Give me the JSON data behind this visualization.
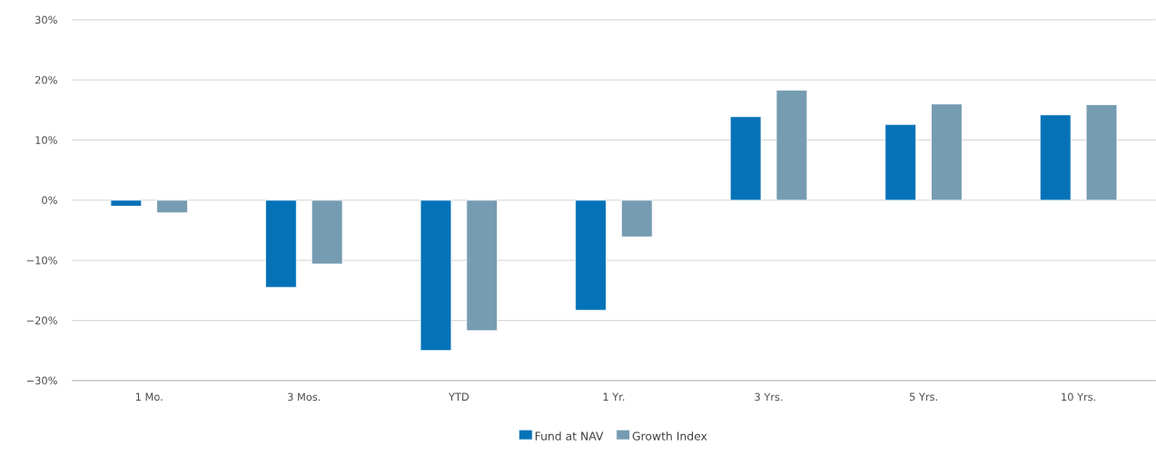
{
  "chart_data": {
    "type": "bar",
    "categories": [
      "1 Mo.",
      "3 Mos.",
      "YTD",
      "1 Yr.",
      "3 Yrs.",
      "5 Yrs.",
      "10 Yrs."
    ],
    "series": [
      {
        "name": "Fund at NAV",
        "color": "#0572b8",
        "values": [
          -1.0,
          -14.5,
          -25.0,
          -18.3,
          13.9,
          12.6,
          14.2
        ]
      },
      {
        "name": "Growth Index",
        "color": "#769cb2",
        "values": [
          -2.1,
          -10.6,
          -21.7,
          -6.1,
          18.3,
          16.0,
          15.9
        ]
      }
    ],
    "ylim": [
      -30,
      30
    ],
    "yticks": [
      {
        "value": -30,
        "label": "−30%"
      },
      {
        "value": -20,
        "label": "−20%"
      },
      {
        "value": -10,
        "label": "−10%"
      },
      {
        "value": 0,
        "label": "0%"
      },
      {
        "value": 10,
        "label": "10%"
      },
      {
        "value": 20,
        "label": "20%"
      },
      {
        "value": 30,
        "label": "30%"
      }
    ],
    "grid": "y",
    "legend": "bottom"
  }
}
